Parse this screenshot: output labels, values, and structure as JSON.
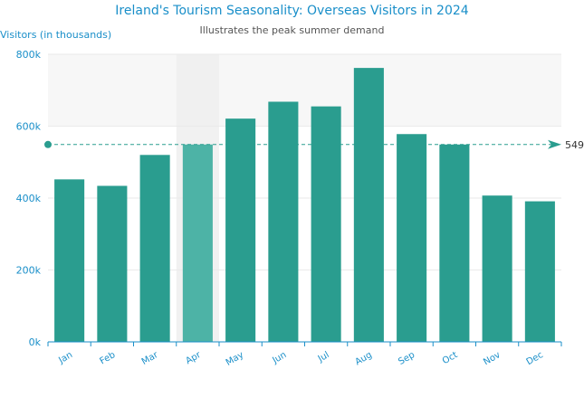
{
  "chart_data": {
    "type": "bar",
    "title": "Ireland's Tourism Seasonality: Overseas Visitors in 2024",
    "subtitle": "Illustrates the peak summer demand",
    "ylabel": "Visitors (in thousands)",
    "xlabel": "",
    "categories": [
      "Jan",
      "Feb",
      "Mar",
      "Apr",
      "May",
      "Jun",
      "Jul",
      "Aug",
      "Sep",
      "Oct",
      "Nov",
      "Dec"
    ],
    "values": [
      452,
      434,
      520,
      549,
      621,
      668,
      655,
      762,
      578,
      549,
      407,
      391
    ],
    "ylim": [
      0,
      800
    ],
    "yticks": [
      0,
      200,
      400,
      600,
      800
    ],
    "ytick_labels": [
      "0k",
      "200k",
      "400k",
      "600k",
      "800k"
    ],
    "highlighted_category": "Apr",
    "reference_line": {
      "value": 549,
      "label": "549"
    },
    "shaded_band": {
      "from": 600,
      "to": 800
    },
    "grid": true,
    "legend": "none",
    "colors": {
      "bar": "#2a9d8f",
      "bar_highlight": "#4db3a6",
      "title": "#1a8fc9",
      "axis": "#1a8fc9",
      "reference_line": "#2a9d8f"
    }
  }
}
